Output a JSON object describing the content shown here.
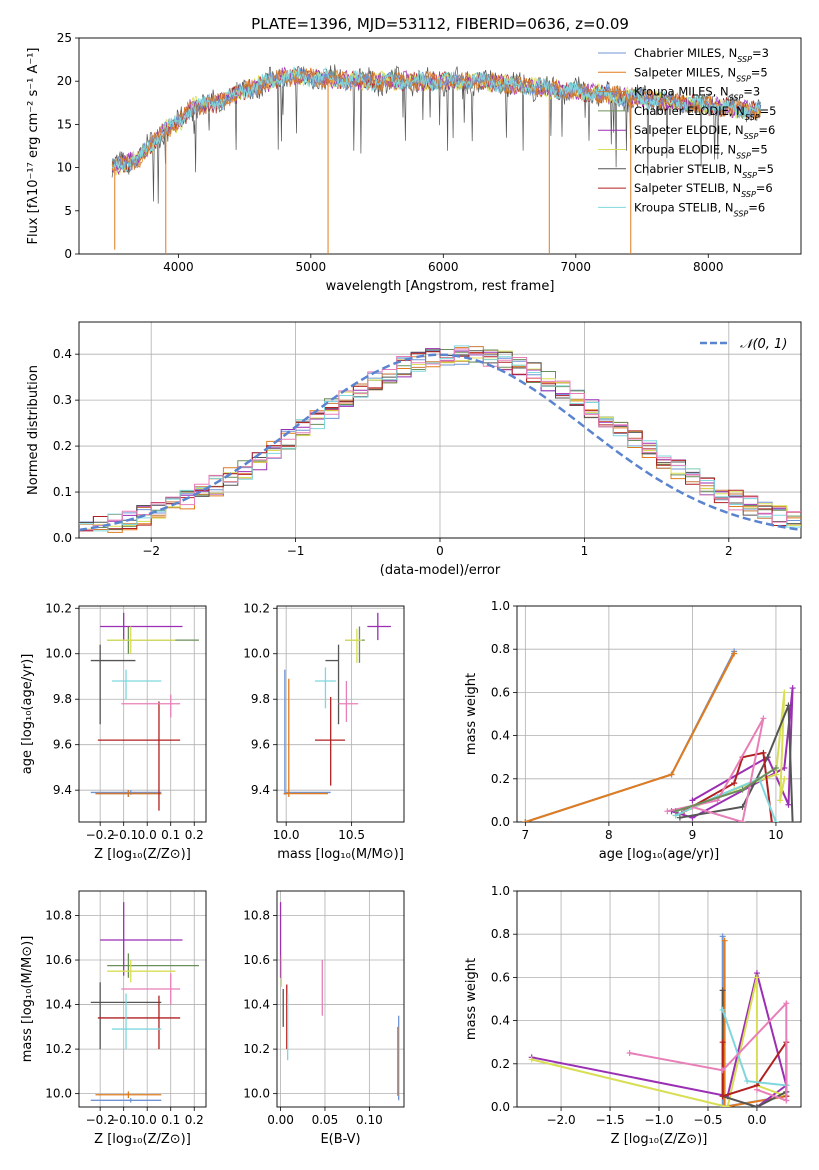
{
  "colors": {
    "Chabrier MILES": "#6f94d6",
    "Salpeter MILES": "#e07b1e",
    "Kroupa MILES": "#c97a3a",
    "Chabrier ELODIE": "#6b8f5a",
    "Salpeter ELODIE": "#9b2fb4",
    "Kroupa ELODIE": "#d8de55",
    "Chabrier STELIB": "#555555",
    "Salpeter STELIB": "#b02020",
    "Kroupa STELIB": "#7fd7dd",
    "gaussian": "#5b84d0",
    "pink": "#e87fb8"
  },
  "legend_entries": [
    {
      "name": "Chabrier MILES",
      "nssp": "3"
    },
    {
      "name": "Salpeter MILES",
      "nssp": "5"
    },
    {
      "name": "Kroupa MILES",
      "nssp": "3"
    },
    {
      "name": "Chabrier ELODIE",
      "nssp": "5"
    },
    {
      "name": "Salpeter ELODIE",
      "nssp": "6"
    },
    {
      "name": "Kroupa ELODIE",
      "nssp": "5"
    },
    {
      "name": "Chabrier STELIB",
      "nssp": "5"
    },
    {
      "name": "Salpeter STELIB",
      "nssp": "6"
    },
    {
      "name": "Kroupa STELIB",
      "nssp": "6"
    }
  ],
  "chart_data": [
    {
      "id": "spectrum",
      "type": "line",
      "title": "PLATE=1396, MJD=53112, FIBERID=0636, z=0.09",
      "xlabel": "wavelength [Angstrom, rest frame]",
      "ylabel": "Flux [fλ10⁻¹⁷ erg cm⁻² s⁻¹ A⁻¹]",
      "xlim": [
        3250,
        8700
      ],
      "ylim": [
        0,
        25
      ],
      "xticks": [
        4000,
        5000,
        6000,
        7000,
        8000
      ],
      "yticks": [
        0,
        5,
        10,
        15,
        20,
        25
      ],
      "continuum_x": [
        3500,
        3700,
        3900,
        4000,
        4100,
        4300,
        4500,
        4800,
        5000,
        5300,
        5600,
        6000,
        6300,
        6600,
        6900,
        7200,
        7500,
        7800,
        8100,
        8400
      ],
      "continuum_y": [
        10,
        11,
        14.5,
        15,
        17,
        17.5,
        19,
        20.5,
        20.5,
        20,
        20,
        20,
        20,
        19.5,
        19,
        18.5,
        18,
        17.5,
        17,
        16.5
      ],
      "spikes": [
        {
          "x": 3520,
          "y": 0.5
        },
        {
          "x": 3905,
          "y": 0
        },
        {
          "x": 5130,
          "y": 0
        },
        {
          "x": 6800,
          "y": 0
        },
        {
          "x": 7415,
          "y": 0
        }
      ],
      "legend_position": "right"
    },
    {
      "id": "residuals",
      "type": "histogram",
      "xlabel": "(data-model)/error",
      "ylabel": "Normed distribution",
      "xlim": [
        -2.5,
        2.5
      ],
      "ylim": [
        0,
        0.47
      ],
      "xticks": [
        -2,
        -1,
        0,
        1,
        2
      ],
      "yticks": [
        0.0,
        0.1,
        0.2,
        0.3,
        0.4
      ],
      "bin_width": 0.1,
      "legend": "𝒩(0, 1)",
      "legend_position": "top-right",
      "grid": true
    },
    {
      "id": "age-vs-Z",
      "type": "errorbar",
      "xlabel": "Z [log₁₀(Z/Z⊙)]",
      "ylabel": "age  [log₁₀(age/yr)]",
      "xlim": [
        -0.29,
        0.25
      ],
      "ylim": [
        9.26,
        10.21
      ],
      "xticks": [
        -0.2,
        -0.1,
        0.0,
        0.1,
        0.2
      ],
      "yticks": [
        9.4,
        9.6,
        9.8,
        10.0,
        10.2
      ],
      "points": [
        {
          "s": "Chabrier MILES",
          "x": -0.07,
          "y": 9.39,
          "xe": [
            -0.24,
            0.06
          ],
          "ye": [
            9.38,
            9.4
          ]
        },
        {
          "s": "Salpeter MILES",
          "x": -0.08,
          "y": 9.385,
          "xe": [
            -0.22,
            0.06
          ],
          "ye": [
            9.37,
            9.4
          ]
        },
        {
          "s": "Kroupa MILES",
          "x": -0.08,
          "y": 9.385,
          "xe": [
            -0.22,
            0.06
          ],
          "ye": [
            9.37,
            9.4
          ]
        },
        {
          "s": "Chabrier ELODIE",
          "x": -0.08,
          "y": 10.06,
          "xe": [
            -0.17,
            0.22
          ],
          "ye": [
            10.0,
            10.12
          ]
        },
        {
          "s": "Salpeter ELODIE",
          "x": -0.1,
          "y": 10.12,
          "xe": [
            -0.2,
            0.15
          ],
          "ye": [
            10.06,
            10.18
          ]
        },
        {
          "s": "Kroupa ELODIE",
          "x": -0.07,
          "y": 10.06,
          "xe": [
            -0.17,
            0.12
          ],
          "ye": [
            10.0,
            10.12
          ]
        },
        {
          "s": "Chabrier STELIB",
          "x": -0.2,
          "y": 9.97,
          "xe": [
            -0.24,
            -0.05
          ],
          "ye": [
            9.69,
            10.04
          ]
        },
        {
          "s": "Salpeter STELIB",
          "x": 0.05,
          "y": 9.62,
          "xe": [
            -0.21,
            0.14
          ],
          "ye": [
            9.31,
            9.79
          ]
        },
        {
          "s": "Kroupa STELIB",
          "x": -0.09,
          "y": 9.88,
          "xe": [
            -0.15,
            0.06
          ],
          "ye": [
            9.8,
            9.93
          ]
        },
        {
          "s": "pink",
          "x": 0.1,
          "y": 9.78,
          "xe": [
            -0.11,
            0.14
          ],
          "ye": [
            9.72,
            9.82
          ]
        }
      ]
    },
    {
      "id": "age-vs-mass",
      "type": "errorbar",
      "xlabel": "mass [log₁₀(M/M⊙)]",
      "ylabel": "",
      "xlim": [
        9.93,
        10.9
      ],
      "ylim": [
        9.26,
        10.21
      ],
      "xticks": [
        10.0,
        10.5
      ],
      "yticks": [
        9.4,
        9.6,
        9.8,
        10.0,
        10.2
      ],
      "points": [
        {
          "s": "Chabrier MILES",
          "x": 9.99,
          "y": 9.39,
          "xe": [
            9.99,
            10.34
          ],
          "ye": [
            9.38,
            9.93
          ]
        },
        {
          "s": "Salpeter MILES",
          "x": 10.02,
          "y": 9.385,
          "xe": [
            9.98,
            10.32
          ],
          "ye": [
            9.37,
            9.89
          ]
        },
        {
          "s": "Chabrier ELODIE",
          "x": 10.56,
          "y": 10.06,
          "xe": [
            10.45,
            10.6
          ],
          "ye": [
            9.96,
            10.12
          ]
        },
        {
          "s": "Salpeter ELODIE",
          "x": 10.7,
          "y": 10.12,
          "xe": [
            10.62,
            10.8
          ],
          "ye": [
            10.06,
            10.18
          ]
        },
        {
          "s": "Kroupa ELODIE",
          "x": 10.54,
          "y": 10.06,
          "xe": [
            10.45,
            10.58
          ],
          "ye": [
            9.96,
            10.11
          ]
        },
        {
          "s": "Chabrier STELIB",
          "x": 10.4,
          "y": 9.97,
          "xe": [
            10.3,
            10.4
          ],
          "ye": [
            9.69,
            10.04
          ]
        },
        {
          "s": "Salpeter STELIB",
          "x": 10.34,
          "y": 9.62,
          "xe": [
            10.22,
            10.45
          ],
          "ye": [
            9.42,
            9.81
          ]
        },
        {
          "s": "Kroupa STELIB",
          "x": 10.3,
          "y": 9.88,
          "xe": [
            10.22,
            10.38
          ],
          "ye": [
            9.76,
            9.94
          ]
        },
        {
          "s": "pink",
          "x": 10.46,
          "y": 9.78,
          "xe": [
            10.4,
            10.55
          ],
          "ye": [
            9.7,
            9.88
          ]
        }
      ]
    },
    {
      "id": "massweight-vs-age",
      "type": "line",
      "xlabel": "age  [log₁₀(age/yr)]",
      "ylabel": "mass weight",
      "xlim": [
        6.9,
        10.3
      ],
      "ylim": [
        0,
        1
      ],
      "xticks": [
        7,
        8,
        9,
        10
      ],
      "yticks": [
        0.0,
        0.2,
        0.4,
        0.6,
        0.8,
        1.0
      ],
      "series": [
        {
          "s": "Chabrier MILES",
          "x": [
            7.0,
            8.75,
            9.5
          ],
          "y": [
            0.0,
            0.22,
            0.79
          ]
        },
        {
          "s": "Salpeter MILES",
          "x": [
            7.0,
            8.75,
            9.5
          ],
          "y": [
            0.0,
            0.22,
            0.78
          ]
        },
        {
          "s": "Salpeter ELODIE",
          "x": [
            8.75,
            9.0,
            10.1,
            10.2,
            10.15,
            9.9,
            9.0
          ],
          "y": [
            0.05,
            0.02,
            0.25,
            0.62,
            0.08,
            0.3,
            0.1
          ]
        },
        {
          "s": "Kroupa ELODIE",
          "x": [
            8.8,
            9.5,
            10.0,
            10.1,
            10.05,
            10.1
          ],
          "y": [
            0.03,
            0.15,
            0.22,
            0.6,
            0.1,
            0.2
          ]
        },
        {
          "s": "Chabrier STELIB",
          "x": [
            8.85,
            9.6,
            9.9,
            10.15,
            10.2
          ],
          "y": [
            0.02,
            0.07,
            0.3,
            0.54,
            0.0
          ]
        },
        {
          "s": "Salpeter STELIB",
          "x": [
            8.9,
            9.5,
            9.6,
            9.85,
            9.95
          ],
          "y": [
            0.05,
            0.18,
            0.3,
            0.32,
            0.0
          ]
        },
        {
          "s": "Kroupa STELIB",
          "x": [
            8.8,
            9.3,
            9.8,
            10.0
          ],
          "y": [
            0.03,
            0.12,
            0.2,
            0.0
          ]
        },
        {
          "s": "pink",
          "x": [
            8.7,
            9.3,
            9.85,
            9.6,
            9.0
          ],
          "y": [
            0.05,
            0.1,
            0.48,
            0.0,
            0.07
          ]
        },
        {
          "s": "Chabrier ELODIE",
          "x": [
            8.8,
            9.6,
            10.0
          ],
          "y": [
            0.05,
            0.15,
            0.25
          ]
        }
      ]
    },
    {
      "id": "mass-vs-Z",
      "type": "errorbar",
      "xlabel": "Z [log₁₀(Z/Z⊙)]",
      "ylabel": "mass [log₁₀(M/M⊙)]",
      "xlim": [
        -0.29,
        0.25
      ],
      "ylim": [
        9.94,
        10.91
      ],
      "xticks": [
        -0.2,
        -0.1,
        0.0,
        0.1,
        0.2
      ],
      "yticks": [
        10.0,
        10.2,
        10.4,
        10.6,
        10.8
      ],
      "points": [
        {
          "s": "Chabrier MILES",
          "x": -0.07,
          "y": 9.97,
          "xe": [
            -0.24,
            0.06
          ],
          "ye": [
            9.96,
            9.98
          ]
        },
        {
          "s": "Salpeter MILES",
          "x": -0.08,
          "y": 9.995,
          "xe": [
            -0.22,
            0.06
          ],
          "ye": [
            9.98,
            10.01
          ]
        },
        {
          "s": "Chabrier ELODIE",
          "x": -0.08,
          "y": 10.575,
          "xe": [
            -0.17,
            0.22
          ],
          "ye": [
            10.52,
            10.63
          ]
        },
        {
          "s": "Salpeter ELODIE",
          "x": -0.1,
          "y": 10.69,
          "xe": [
            -0.2,
            0.15
          ],
          "ye": [
            10.53,
            10.86
          ]
        },
        {
          "s": "Kroupa ELODIE",
          "x": -0.07,
          "y": 10.55,
          "xe": [
            -0.17,
            0.12
          ],
          "ye": [
            10.5,
            10.6
          ]
        },
        {
          "s": "Chabrier STELIB",
          "x": -0.2,
          "y": 10.41,
          "xe": [
            -0.24,
            0.06
          ],
          "ye": [
            10.2,
            10.5
          ]
        },
        {
          "s": "Salpeter STELIB",
          "x": 0.05,
          "y": 10.34,
          "xe": [
            -0.21,
            0.14
          ],
          "ye": [
            10.2,
            10.44
          ]
        },
        {
          "s": "Kroupa STELIB",
          "x": -0.09,
          "y": 10.29,
          "xe": [
            -0.15,
            0.06
          ],
          "ye": [
            10.2,
            10.45
          ]
        },
        {
          "s": "pink",
          "x": 0.1,
          "y": 10.47,
          "xe": [
            -0.11,
            0.14
          ],
          "ye": [
            10.4,
            10.54
          ]
        }
      ]
    },
    {
      "id": "mass-vs-EBV",
      "type": "errorbar",
      "xlabel": "E(B-V)",
      "ylabel": "",
      "xlim": [
        -0.004,
        0.139
      ],
      "ylim": [
        9.94,
        10.91
      ],
      "xticks": [
        0.0,
        0.05,
        0.1
      ],
      "xticklabels": [
        "0.00",
        "0.05",
        "0.10"
      ],
      "yticks": [
        10.0,
        10.2,
        10.4,
        10.6,
        10.8
      ],
      "points": [
        {
          "s": "Salpeter ELODIE",
          "x": 0.0,
          "y": 10.7,
          "ye": [
            10.52,
            10.86
          ]
        },
        {
          "s": "Kroupa ELODIE",
          "x": 0.001,
          "y": 10.55,
          "ye": [
            10.48,
            10.62
          ]
        },
        {
          "s": "Chabrier STELIB",
          "x": 0.003,
          "y": 10.4,
          "ye": [
            10.3,
            10.47
          ]
        },
        {
          "s": "Salpeter STELIB",
          "x": 0.007,
          "y": 10.35,
          "ye": [
            10.2,
            10.49
          ]
        },
        {
          "s": "Kroupa STELIB",
          "x": 0.008,
          "y": 10.25,
          "ye": [
            10.15,
            10.45
          ]
        },
        {
          "s": "pink",
          "x": 0.047,
          "y": 10.47,
          "ye": [
            10.35,
            10.6
          ]
        },
        {
          "s": "Chabrier MILES",
          "x": 0.133,
          "y": 10.1,
          "ye": [
            9.97,
            10.35
          ]
        },
        {
          "s": "Salpeter MILES",
          "x": 0.132,
          "y": 10.05,
          "ye": [
            9.99,
            10.3
          ]
        }
      ]
    },
    {
      "id": "massweight-vs-Z",
      "type": "line",
      "xlabel": "Z [log₁₀(Z/Z⊙)]",
      "ylabel": "mass weight",
      "xlim": [
        -2.45,
        0.45
      ],
      "ylim": [
        0,
        1
      ],
      "xticks": [
        -2.0,
        -1.5,
        -1.0,
        -0.5,
        0.0
      ],
      "yticks": [
        0.0,
        0.2,
        0.4,
        0.6,
        0.8,
        1.0
      ],
      "series": [
        {
          "s": "Chabrier MILES",
          "x": [
            -0.35,
            -0.35,
            0.3
          ],
          "y": [
            0.79,
            0.0,
            0.05
          ]
        },
        {
          "s": "Salpeter MILES",
          "x": [
            -0.33,
            -0.33,
            0.3
          ],
          "y": [
            0.77,
            0.0,
            0.05
          ]
        },
        {
          "s": "Salpeter ELODIE",
          "x": [
            -2.3,
            -0.3,
            0.0,
            0.3,
            0.0
          ],
          "y": [
            0.23,
            0.05,
            0.62,
            0.1,
            0.0
          ]
        },
        {
          "s": "Kroupa ELODIE",
          "x": [
            -2.3,
            -0.3,
            0.0,
            0.0,
            0.3
          ],
          "y": [
            0.22,
            0.0,
            0.6,
            0.1,
            0.05
          ]
        },
        {
          "s": "Chabrier STELIB",
          "x": [
            -0.35,
            -0.35,
            0.0,
            0.3
          ],
          "y": [
            0.54,
            0.05,
            0.0,
            0.07
          ]
        },
        {
          "s": "Salpeter STELIB",
          "x": [
            -0.35,
            -0.35,
            0.0,
            0.3,
            0.3
          ],
          "y": [
            0.3,
            0.05,
            0.1,
            0.3,
            0.05
          ]
        },
        {
          "s": "Kroupa STELIB",
          "x": [
            -0.35,
            -0.1,
            0.3
          ],
          "y": [
            0.45,
            0.12,
            0.1
          ]
        },
        {
          "s": "pink",
          "x": [
            -1.3,
            -0.35,
            0.3,
            0.3,
            0.0
          ],
          "y": [
            0.25,
            0.17,
            0.48,
            0.03,
            0.08
          ]
        }
      ]
    }
  ]
}
